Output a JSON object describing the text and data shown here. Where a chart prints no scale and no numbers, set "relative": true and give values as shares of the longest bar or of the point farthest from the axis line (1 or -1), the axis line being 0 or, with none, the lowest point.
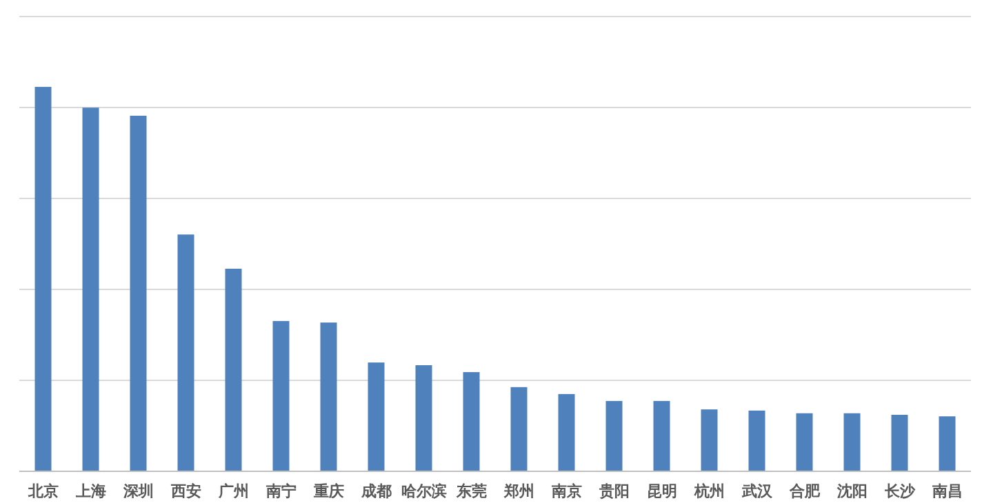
{
  "chart_data": {
    "type": "bar",
    "relative": true,
    "grid": "y",
    "color": "#4f81bd",
    "categories": [
      "北京",
      "上海",
      "深圳",
      "西安",
      "广州",
      "南宁",
      "重庆",
      "成都",
      "哈尔滨",
      "东莞",
      "郑州",
      "南京",
      "贵阳",
      "昆明",
      "杭州",
      "武汉",
      "合肥",
      "沈阳",
      "长沙",
      "南昌"
    ],
    "values": [
      1,
      0.946,
      0.925,
      0.616,
      0.527,
      0.391,
      0.387,
      0.283,
      0.276,
      0.258,
      0.219,
      0.201,
      0.183,
      0.183,
      0.161,
      0.158,
      0.151,
      0.151,
      0.147,
      0.143
    ]
  }
}
